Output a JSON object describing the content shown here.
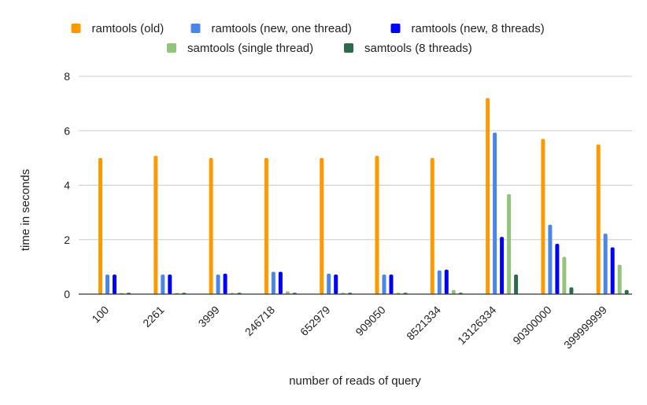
{
  "chart_data": {
    "type": "bar",
    "title": "",
    "xlabel": "number of reads of query",
    "ylabel": "time in seconds",
    "ylim": [
      0,
      8
    ],
    "yticks": [
      0,
      2,
      4,
      6,
      8
    ],
    "grid": true,
    "legend_position": "top",
    "categories": [
      "100",
      "2261",
      "3999",
      "246718",
      "652979",
      "909050",
      "8521334",
      "13126334",
      "90300000",
      "399999999"
    ],
    "series": [
      {
        "name": "ramtools (old)",
        "color": "#ff9900",
        "values": [
          5.0,
          5.08,
          5.0,
          5.0,
          5.0,
          5.08,
          5.0,
          7.2,
          5.7,
          5.5
        ]
      },
      {
        "name": "ramtools (new, one thread)",
        "color": "#4a86e8",
        "values": [
          0.72,
          0.72,
          0.72,
          0.82,
          0.75,
          0.72,
          0.87,
          5.93,
          2.55,
          2.22
        ]
      },
      {
        "name": "ramtools (new, 8 threads)",
        "color": "#0000ff",
        "values": [
          0.72,
          0.72,
          0.75,
          0.82,
          0.72,
          0.72,
          0.9,
          2.1,
          1.85,
          1.72
        ]
      },
      {
        "name": "samtools (single thread)",
        "color": "#93c47d",
        "values": [
          0.03,
          0.03,
          0.03,
          0.1,
          0.05,
          0.05,
          0.15,
          3.67,
          1.37,
          1.08
        ]
      },
      {
        "name": "samtools (8 threads)",
        "color": "#2e6b4e",
        "values": [
          0.05,
          0.05,
          0.05,
          0.05,
          0.05,
          0.05,
          0.05,
          0.72,
          0.25,
          0.15
        ]
      }
    ]
  }
}
